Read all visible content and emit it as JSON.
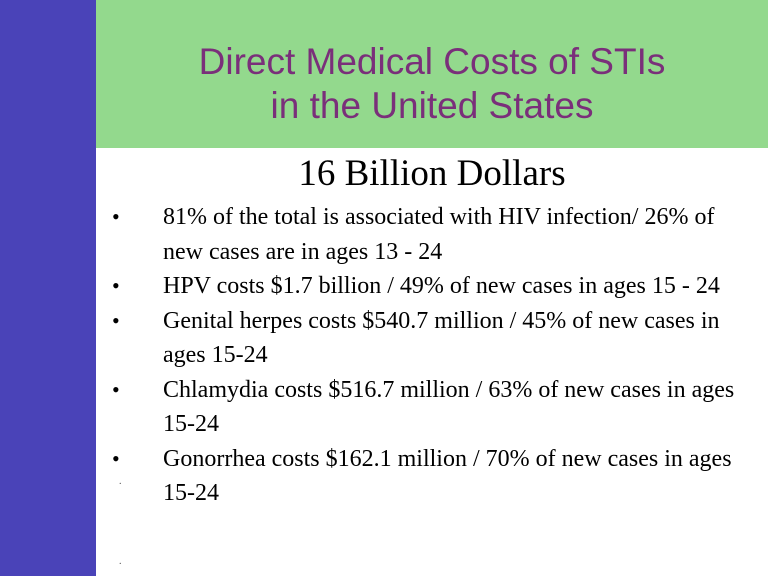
{
  "slide": {
    "title_lines": [
      "Direct Medical Costs of STIs",
      "in the United States"
    ],
    "subtitle": "16 Billion Dollars",
    "bullet_symbol": "•",
    "bullets": [
      "81% of the total is associated with HIV infection/ 26% of new cases are in ages 13 - 24",
      "HPV costs $1.7 billion / 49% of new cases in ages 15 - 24",
      "Genital herpes costs $540.7 million / 45% of new cases in ages 15-24",
      "Chlamydia costs $516.7 million / 63% of new cases in ages 15-24",
      "Gonorrhea costs $162.1 million / 70% of new cases in ages 15-24"
    ],
    "stray_marks": [
      ".",
      "."
    ]
  },
  "colors": {
    "sidebar": "#4a43b8",
    "title_band": "#93d98d",
    "title_text": "#7a2f7a",
    "body_text": "#000000"
  }
}
